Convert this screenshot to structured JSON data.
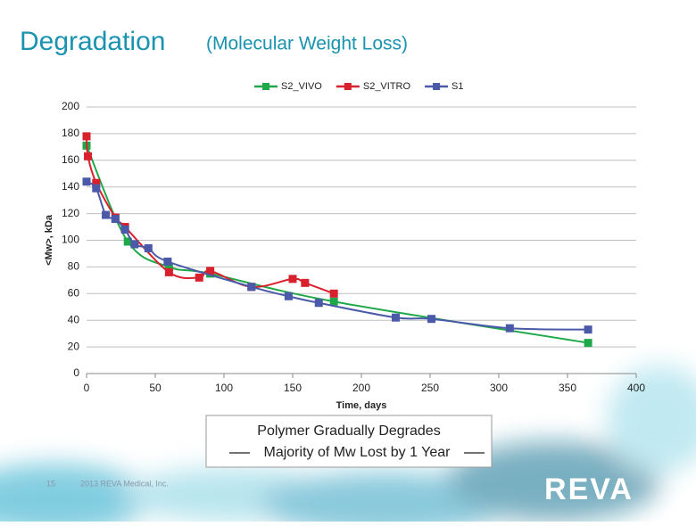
{
  "slide": {
    "title": "Degradation",
    "subtitle": "(Molecular Weight Loss)",
    "page_number": "15",
    "footer": "2013 REVA Medical, Inc.",
    "logo": "REVA"
  },
  "chart_data": {
    "type": "line",
    "xlabel": "Time, days",
    "ylabel": "<Mw>, kDa",
    "annotation": [
      "Polymer Gradually Degrades",
      "Majority of Mw Lost by 1 Year"
    ],
    "xlim": [
      0,
      400
    ],
    "xticks": [
      0,
      50,
      100,
      150,
      200,
      250,
      300,
      350,
      400
    ],
    "ylim": [
      0,
      200
    ],
    "yticks": [
      0,
      20,
      40,
      60,
      80,
      100,
      120,
      140,
      160,
      180,
      200
    ],
    "grid": true,
    "legend": "top",
    "series": [
      {
        "name": "S2_VIVO",
        "color": "#1fa84a",
        "x": [
          0,
          30,
          60,
          90,
          180,
          365
        ],
        "values": [
          171,
          99,
          80,
          75,
          54,
          23
        ]
      },
      {
        "name": "S2_VITRO",
        "color": "#d9212e",
        "x": [
          0,
          1,
          7,
          21,
          28,
          60,
          82,
          90,
          120,
          150,
          159,
          180
        ],
        "values": [
          178,
          163,
          143,
          117,
          110,
          76,
          72,
          77,
          65,
          71,
          68,
          60
        ]
      },
      {
        "name": "S1",
        "color": "#4a5aa8",
        "x": [
          0,
          7,
          14,
          21,
          28,
          35,
          45,
          59,
          120,
          147,
          169,
          225,
          251,
          308,
          365
        ],
        "values": [
          144,
          139,
          119,
          116,
          108,
          97,
          94,
          84,
          65,
          58,
          53,
          42,
          41,
          34,
          33
        ]
      }
    ]
  }
}
